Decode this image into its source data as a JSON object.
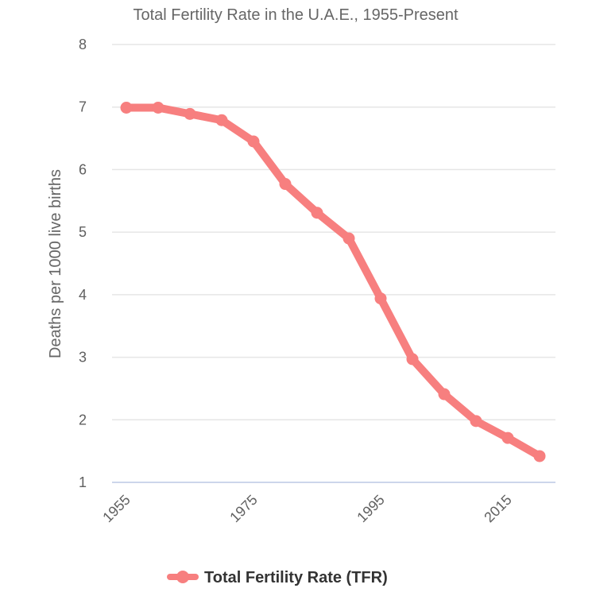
{
  "chart_data": {
    "type": "line",
    "title": "Total Fertility Rate in the U.A.E., 1955-Present",
    "xlabel": "",
    "ylabel": "Deaths per 1000 live births",
    "ylim": [
      1,
      8
    ],
    "yticks": [
      1,
      2,
      3,
      4,
      5,
      6,
      7,
      8
    ],
    "xticks": [
      1955,
      1975,
      1995,
      2015
    ],
    "xlim": [
      1955,
      2020
    ],
    "grid": true,
    "legend": "bottom-center",
    "x": [
      1955,
      1960,
      1965,
      1970,
      1975,
      1980,
      1985,
      1990,
      1995,
      2000,
      2005,
      2010,
      2015,
      2020
    ],
    "series": [
      {
        "name": "Total Fertility Rate (TFR)",
        "color": "#f77f7f",
        "values": [
          6.99,
          6.99,
          6.89,
          6.79,
          6.45,
          5.77,
          5.31,
          4.9,
          3.94,
          2.97,
          2.41,
          1.98,
          1.71,
          1.42
        ]
      }
    ]
  }
}
